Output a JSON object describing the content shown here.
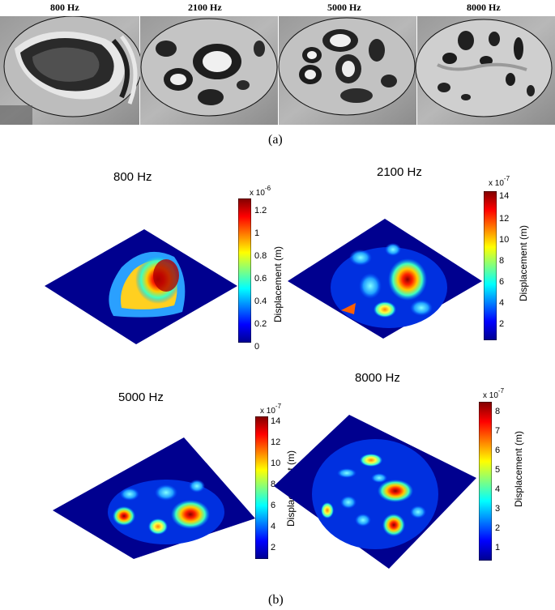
{
  "panel_a": {
    "titles": [
      "800 Hz",
      "2100 Hz",
      "5000 Hz",
      "8000 Hz"
    ],
    "caption": "(a)"
  },
  "panel_b": {
    "caption": "(b)",
    "plots": [
      {
        "title": "800 Hz",
        "exponent_base": "x 10",
        "exponent_power": "-6",
        "ticks": [
          "1.2",
          "1",
          "0.8",
          "0.6",
          "0.4",
          "0.2",
          "0"
        ],
        "colorbar_label": "Displacement (m)"
      },
      {
        "title": "2100 Hz",
        "exponent_base": "x 10",
        "exponent_power": "-7",
        "ticks": [
          "14",
          "12",
          "10",
          "8",
          "6",
          "4",
          "2"
        ],
        "colorbar_label": "Displacement (m)"
      },
      {
        "title": "5000 Hz",
        "exponent_base": "x 10",
        "exponent_power": "-7",
        "ticks": [
          "14",
          "12",
          "10",
          "8",
          "6",
          "4",
          "2"
        ],
        "colorbar_label": "Displacement (m)"
      },
      {
        "title": "8000 Hz",
        "exponent_base": "x 10",
        "exponent_power": "-7",
        "ticks": [
          "8",
          "7",
          "6",
          "5",
          "4",
          "3",
          "2",
          "1"
        ],
        "colorbar_label": "Displacement (m)"
      }
    ]
  },
  "colors": {
    "jet_low": "#00008f",
    "jet_mid": "#00ffff",
    "jet_high": "#800000"
  }
}
